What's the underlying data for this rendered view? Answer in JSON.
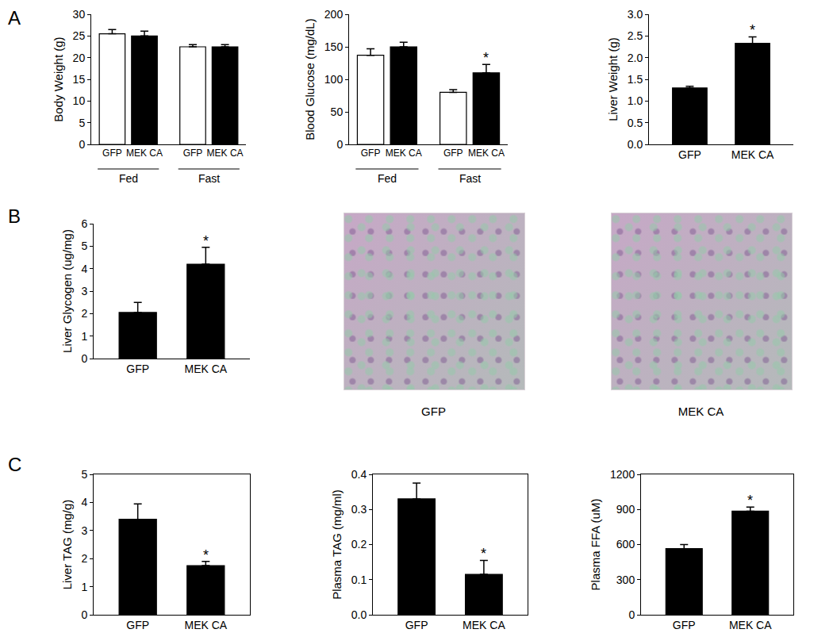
{
  "panel_labels": [
    "A",
    "B",
    "C"
  ],
  "chart_data": [
    {
      "type": "bar",
      "y_label": "Body Weight (g)",
      "groups": [
        "Fed",
        "Fed",
        "Fast",
        "Fast"
      ],
      "categories": [
        "GFP",
        "MEK CA",
        "GFP",
        "MEK CA"
      ],
      "values": [
        25.5,
        25.0,
        22.5,
        22.5
      ],
      "errors": [
        1.0,
        1.1,
        0.5,
        0.5
      ],
      "colors": [
        "#ffffff",
        "#000000",
        "#ffffff",
        "#000000"
      ],
      "significance": [
        null,
        null,
        null,
        null
      ],
      "ylim": [
        0,
        30
      ],
      "yticks": [
        0,
        5,
        10,
        15,
        20,
        25,
        30
      ]
    },
    {
      "type": "bar",
      "y_label": "Blood Glucose (mg/dL)",
      "groups": [
        "Fed",
        "Fed",
        "Fast",
        "Fast"
      ],
      "categories": [
        "GFP",
        "MEK CA",
        "GFP",
        "MEK CA"
      ],
      "values": [
        137,
        150,
        80,
        110
      ],
      "errors": [
        10,
        7,
        4,
        13
      ],
      "colors": [
        "#ffffff",
        "#000000",
        "#ffffff",
        "#000000"
      ],
      "significance": [
        null,
        null,
        null,
        "*"
      ],
      "ylim": [
        0,
        200
      ],
      "yticks": [
        0,
        50,
        100,
        150,
        200
      ]
    },
    {
      "type": "bar",
      "y_label": "Liver Weight (g)",
      "categories": [
        "GFP",
        "MEK CA"
      ],
      "values": [
        1.3,
        2.33
      ],
      "errors": [
        0.04,
        0.15
      ],
      "color": "#000000",
      "significance": [
        null,
        "*"
      ],
      "ylim": [
        0,
        3
      ],
      "yticks": [
        {
          "value": 0,
          "label": "0.0"
        },
        0.5,
        {
          "value": 1,
          "label": "1.0"
        },
        1.5,
        {
          "value": 2,
          "label": "2.0"
        },
        2.5,
        {
          "value": 3,
          "label": "3.0"
        }
      ]
    },
    {
      "type": "bar",
      "y_label": "Liver Glycogen (ug/mg)",
      "categories": [
        "GFP",
        "MEK CA"
      ],
      "values": [
        2.05,
        4.2
      ],
      "errors": [
        0.45,
        0.75
      ],
      "color": "#000000",
      "significance": [
        null,
        "*"
      ],
      "ylim": [
        0,
        6
      ],
      "yticks": [
        0,
        1,
        2,
        3,
        4,
        5,
        6
      ]
    },
    {
      "type": "bar",
      "y_label": "Liver TAG (mg/g)",
      "categories": [
        "GFP",
        "MEK CA"
      ],
      "values": [
        3.4,
        1.75
      ],
      "errors": [
        0.55,
        0.15
      ],
      "color": "#000000",
      "significance": [
        null,
        "*"
      ],
      "ylim": [
        0,
        5
      ],
      "yticks": [
        0,
        1,
        2,
        3,
        4,
        5
      ]
    },
    {
      "type": "bar",
      "y_label": "Plasma TAG (mg/ml)",
      "categories": [
        "GFP",
        "MEK CA"
      ],
      "values": [
        0.33,
        0.115
      ],
      "errors": [
        0.045,
        0.04
      ],
      "color": "#000000",
      "significance": [
        null,
        "*"
      ],
      "ylim": [
        0,
        0.4
      ],
      "yticks": [
        {
          "value": 0,
          "label": "0.0"
        },
        0.1,
        0.2,
        0.3,
        0.4
      ]
    },
    {
      "type": "bar",
      "y_label": "Plasma FFA (uM)",
      "categories": [
        "GFP",
        "MEK CA"
      ],
      "values": [
        565,
        885
      ],
      "errors": [
        35,
        35
      ],
      "color": "#000000",
      "significance": [
        null,
        "*"
      ],
      "ylim": [
        0,
        1200
      ],
      "yticks": [
        0,
        300,
        600,
        900,
        1200
      ]
    }
  ],
  "micrographs": [
    {
      "caption": "GFP"
    },
    {
      "caption": "MEK CA"
    }
  ]
}
